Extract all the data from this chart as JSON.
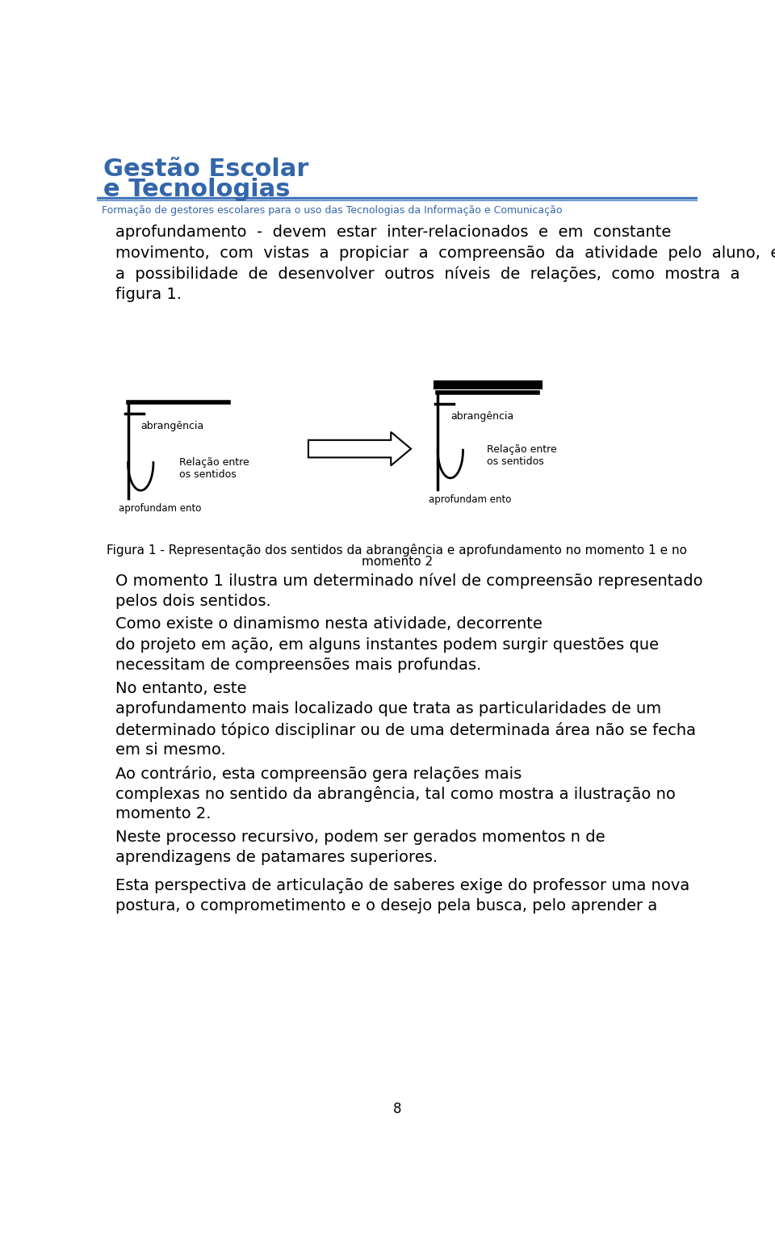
{
  "bg_color": "#ffffff",
  "header_title_line1": "Gestão Escolar",
  "header_title_line2": "e Tecnologias",
  "header_subtitle": "Formação de gestores escolares para o uso das Tecnologias da Informação e Comunicação",
  "header_title_color": "#3366aa",
  "header_subtitle_color": "#3366aa",
  "header_line_color": "#4477bb",
  "text_color": "#000000",
  "page_number": "8",
  "para1_lines": [
    "aprofundamento  -  devem  estar  inter-relacionados  e  em  constante",
    "movimento,  com  vistas  a  propiciar  a  compreensão  da  atividade  pelo  aluno,  e",
    "a  possibilidade  de  desenvolver  outros  níveis  de  relações,  como  mostra  a",
    "figura 1."
  ],
  "fig_caption_line1": "Figura 1 - Representação dos sentidos da abrangência e aprofundamento no momento 1 e no",
  "fig_caption_line2": "momento 2",
  "body_lines": [
    [
      680,
      "O momento 1 ilustra um determinado nível de compreensão representado"
    ],
    [
      713,
      "pelos dois sentidos."
    ],
    [
      750,
      "Como existe o dinamismo nesta atividade, decorrente"
    ],
    [
      783,
      "do projeto em ação, em alguns instantes podem surgir questões que"
    ],
    [
      816,
      "necessitam de compreensões mais profundas."
    ],
    [
      853,
      "No entanto, este"
    ],
    [
      886,
      "aprofundamento mais localizado que trata as particularidades de um"
    ],
    [
      919,
      "determinado tópico disciplinar ou de uma determinada área não se fecha"
    ],
    [
      952,
      "em si mesmo."
    ],
    [
      989,
      "Ao contrário, esta compreensão gera relações mais"
    ],
    [
      1022,
      "complexas no sentido da abrangência, tal como mostra a ilustração no"
    ],
    [
      1055,
      "momento 2."
    ],
    [
      1092,
      "Neste processo recursivo, podem ser gerados momentos n de"
    ],
    [
      1125,
      "aprendizagens de patamares superiores."
    ],
    [
      1170,
      "Esta perspectiva de articulação de saberes exige do professor uma nova"
    ],
    [
      1203,
      "postura, o comprometimento e o desejo pela busca, pelo aprender a"
    ]
  ]
}
